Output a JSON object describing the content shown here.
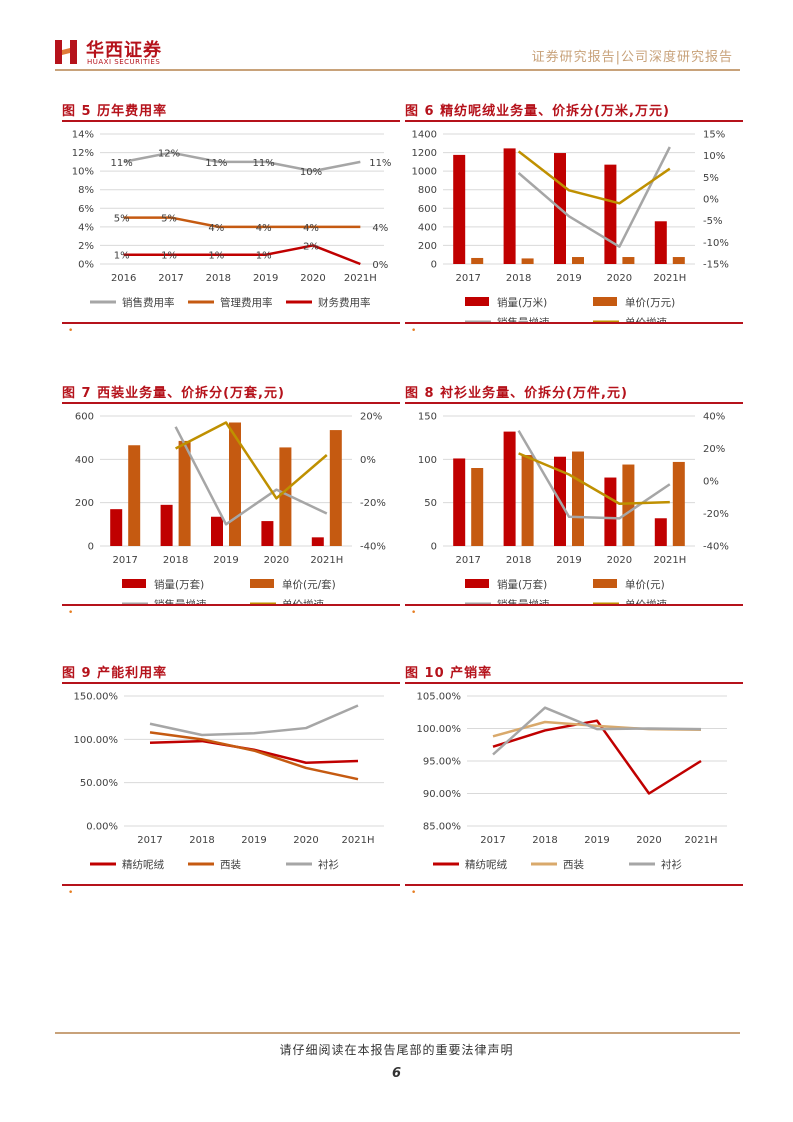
{
  "header": {
    "logo_cn": "华西证券",
    "logo_en": "HUAXI SECURITIES",
    "right_text": "证券研究报告|公司深度研究报告"
  },
  "footer": {
    "text": "请仔细阅读在本报告尾部的重要法律声明",
    "page": "6"
  },
  "colors": {
    "red": "#c00000",
    "orange": "#c55a11",
    "gray": "#a6a6a6",
    "gold": "#bf9000",
    "tan": "#d9a96b",
    "brand": "#b5121b"
  },
  "figures": [
    {
      "title": "图 5 历年费用率",
      "source_mark": "•"
    },
    {
      "title": "图 6 精纺呢绒业务量、价拆分(万米,万元)",
      "source_mark": "•"
    },
    {
      "title": "图 7 西装业务量、价拆分(万套,元)",
      "source_mark": "•"
    },
    {
      "title": "图 8 衬衫业务量、价拆分(万件,元)",
      "source_mark": "•"
    },
    {
      "title": "图 9 产能利用率",
      "source_mark": "•"
    },
    {
      "title": "图 10 产销率",
      "source_mark": ""
    }
  ],
  "chart_data": [
    {
      "type": "line",
      "categories": [
        "2016",
        "2017",
        "2018",
        "2019",
        "2020",
        "2021H"
      ],
      "y_ticks": [
        "0%",
        "2%",
        "4%",
        "6%",
        "8%",
        "10%",
        "12%",
        "14%"
      ],
      "ylim": [
        0,
        14
      ],
      "series": [
        {
          "name": "销售费用率",
          "color": "#a6a6a6",
          "values": [
            11,
            12,
            11,
            11,
            10,
            11
          ],
          "labels": [
            "11%",
            "12%",
            "11%",
            "11%",
            "10%",
            "11%"
          ]
        },
        {
          "name": "管理费用率",
          "color": "#c55a11",
          "values": [
            5,
            5,
            4,
            4,
            4,
            4
          ],
          "labels": [
            "5%",
            "5%",
            "4%",
            "4%",
            "4%",
            "4%"
          ]
        },
        {
          "name": "财务费用率",
          "color": "#c00000",
          "values": [
            1,
            1,
            1,
            1,
            2,
            0
          ],
          "labels": [
            "1%",
            "1%",
            "1%",
            "1%",
            "2%",
            "0%"
          ]
        }
      ],
      "legend": "bottom"
    },
    {
      "type": "bar",
      "categories": [
        "2017",
        "2018",
        "2019",
        "2020",
        "2021H"
      ],
      "y_ticks": [
        "0",
        "200",
        "400",
        "600",
        "800",
        "1000",
        "1200",
        "1400"
      ],
      "ylim": [
        0,
        1400
      ],
      "y2_ticks": [
        "-15%",
        "-10%",
        "-5%",
        "0%",
        "5%",
        "10%",
        "15%"
      ],
      "y2lim": [
        -15,
        15
      ],
      "series": [
        {
          "name": "销量(万米)",
          "kind": "bar",
          "axis": "left",
          "color": "#c00000",
          "values": [
            1175,
            1245,
            1195,
            1070,
            460
          ]
        },
        {
          "name": "单价(万元)",
          "kind": "bar",
          "axis": "left",
          "color": "#c55a11",
          "values": [
            65,
            60,
            75,
            75,
            75
          ]
        },
        {
          "name": "销售量增速",
          "kind": "line",
          "axis": "right",
          "color": "#a6a6a6",
          "values": [
            null,
            6,
            -4,
            -11,
            12
          ]
        },
        {
          "name": "单价增速",
          "kind": "line",
          "axis": "right",
          "color": "#bf9000",
          "values": [
            null,
            11,
            2,
            -1,
            7
          ]
        }
      ],
      "legend": "bottom"
    },
    {
      "type": "bar",
      "categories": [
        "2017",
        "2018",
        "2019",
        "2020",
        "2021H"
      ],
      "y_ticks": [
        "0",
        "200",
        "400",
        "600"
      ],
      "ylim": [
        0,
        600
      ],
      "y2_ticks": [
        "-40%",
        "-20%",
        "0%",
        "20%"
      ],
      "y2lim": [
        -40,
        20
      ],
      "series": [
        {
          "name": "销量(万套)",
          "kind": "bar",
          "axis": "left",
          "color": "#c00000",
          "values": [
            170,
            190,
            135,
            115,
            40
          ]
        },
        {
          "name": "单价(元/套)",
          "kind": "bar",
          "axis": "left",
          "color": "#c55a11",
          "values": [
            465,
            485,
            570,
            455,
            535
          ]
        },
        {
          "name": "销售量增速",
          "kind": "line",
          "axis": "right",
          "color": "#a6a6a6",
          "values": [
            null,
            15,
            -30,
            -14,
            -25
          ]
        },
        {
          "name": "单价增速",
          "kind": "line",
          "axis": "right",
          "color": "#bf9000",
          "values": [
            null,
            5,
            17,
            -18,
            2
          ]
        }
      ],
      "legend": "bottom"
    },
    {
      "type": "bar",
      "categories": [
        "2017",
        "2018",
        "2019",
        "2020",
        "2021H"
      ],
      "y_ticks": [
        "0",
        "50",
        "100",
        "150"
      ],
      "ylim": [
        0,
        150
      ],
      "y2_ticks": [
        "-40%",
        "-20%",
        "0%",
        "20%",
        "40%"
      ],
      "y2lim": [
        -40,
        40
      ],
      "series": [
        {
          "name": "销量(万套)",
          "kind": "bar",
          "axis": "left",
          "color": "#c00000",
          "values": [
            101,
            132,
            103,
            79,
            32
          ]
        },
        {
          "name": "单价(元)",
          "kind": "bar",
          "axis": "left",
          "color": "#c55a11",
          "values": [
            90,
            105,
            109,
            94,
            97
          ]
        },
        {
          "name": "销售量增速",
          "kind": "line",
          "axis": "right",
          "color": "#a6a6a6",
          "values": [
            null,
            31,
            -22,
            -23,
            -2
          ]
        },
        {
          "name": "单价增速",
          "kind": "line",
          "axis": "right",
          "color": "#bf9000",
          "values": [
            null,
            17,
            4,
            -14,
            -13
          ]
        }
      ],
      "legend": "bottom"
    },
    {
      "type": "line",
      "categories": [
        "2017",
        "2018",
        "2019",
        "2020",
        "2021H"
      ],
      "y_ticks": [
        "0.00%",
        "50.00%",
        "100.00%",
        "150.00%"
      ],
      "ylim": [
        0,
        150
      ],
      "series": [
        {
          "name": "精纺呢绒",
          "color": "#c00000",
          "values": [
            96,
            98,
            88,
            73,
            75
          ]
        },
        {
          "name": "西装",
          "color": "#c55a11",
          "values": [
            108,
            100,
            87,
            67,
            54
          ]
        },
        {
          "name": "衬衫",
          "color": "#a6a6a6",
          "values": [
            118,
            105,
            107,
            113,
            139
          ]
        }
      ],
      "legend": "bottom"
    },
    {
      "type": "line",
      "categories": [
        "2017",
        "2018",
        "2019",
        "2020",
        "2021H"
      ],
      "y_ticks": [
        "85.00%",
        "90.00%",
        "95.00%",
        "100.00%",
        "105.00%"
      ],
      "ylim": [
        85,
        105
      ],
      "series": [
        {
          "name": "精纺呢绒",
          "color": "#c00000",
          "values": [
            97.2,
            99.7,
            101.2,
            90,
            95
          ]
        },
        {
          "name": "西装",
          "color": "#d9a96b",
          "values": [
            98.8,
            101,
            100.4,
            99.9,
            99.8
          ]
        },
        {
          "name": "衬衫",
          "color": "#a6a6a6",
          "values": [
            96,
            103.2,
            99.9,
            100,
            99.9
          ]
        }
      ],
      "legend": "bottom"
    }
  ]
}
